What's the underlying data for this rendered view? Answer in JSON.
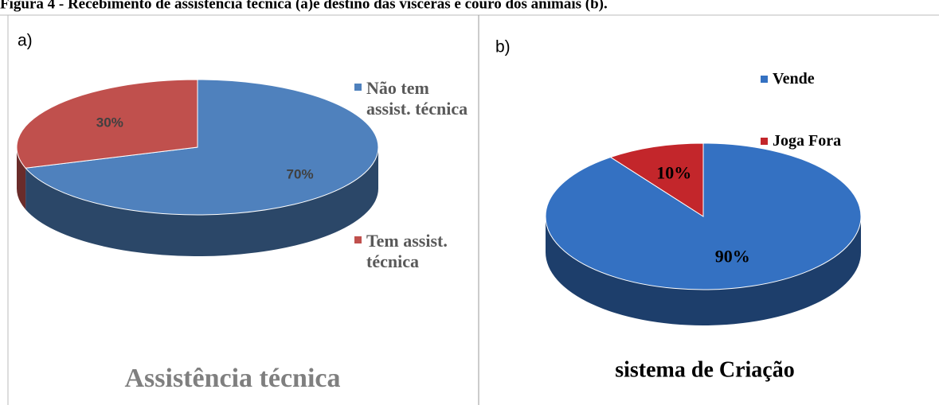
{
  "caption": "Figura 4 - Recebimento de assistência técnica (a)e destino das vísceras e couro dos animais (b).",
  "chart_data": [
    {
      "type": "pie",
      "label": "a)",
      "title": "Assistência técnica",
      "categories": [
        "Não tem assist. técnica",
        "Tem assist. técnica"
      ],
      "values": [
        70,
        30
      ],
      "value_labels": [
        "70%",
        "30%"
      ],
      "colors": [
        "#4f81bd",
        "#c0504d"
      ]
    },
    {
      "type": "pie",
      "label": "b)",
      "title": "sistema de Criação",
      "categories": [
        "Vende",
        "Joga Fora"
      ],
      "values": [
        90,
        10
      ],
      "value_labels": [
        "90%",
        "10%"
      ],
      "colors": [
        "#3471c2",
        "#c3262b"
      ]
    }
  ]
}
